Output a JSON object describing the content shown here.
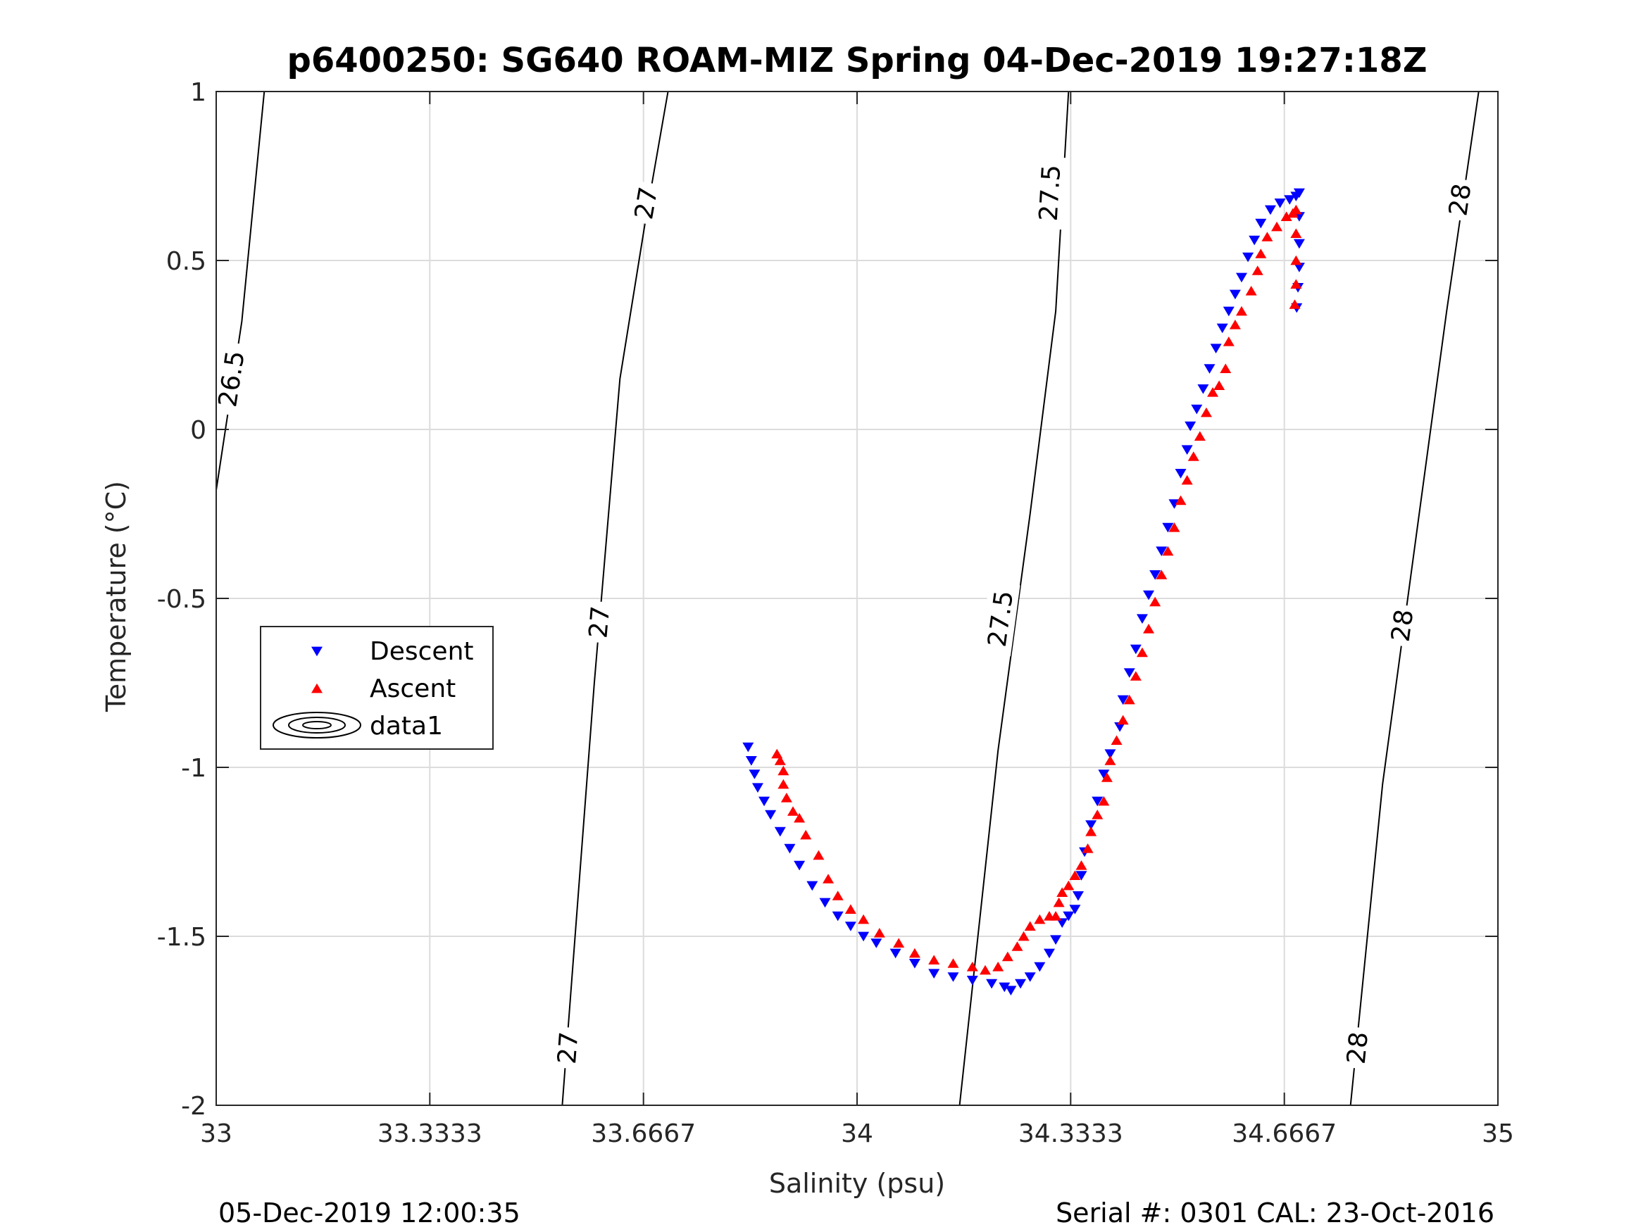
{
  "title": "p6400250: SG640 ROAM-MIZ Spring 04-Dec-2019 19:27:18Z",
  "footer": {
    "left": "05-Dec-2019 12:00:35",
    "right": "Serial #: 0301  CAL: 23-Oct-2016"
  },
  "colors": {
    "descent": "#0000ff",
    "ascent": "#ff0000",
    "grid": "#dcdcdc",
    "axis": "#262626",
    "contour": "#000000"
  },
  "chart_data": {
    "type": "scatter",
    "xlabel": "Salinity (psu)",
    "ylabel": "Temperature (°C)",
    "xlim": [
      33,
      35
    ],
    "ylim": [
      -2,
      1
    ],
    "grid": true,
    "xticks": [
      {
        "value": 33,
        "label": "33"
      },
      {
        "value": 33.3333,
        "label": "33.3333"
      },
      {
        "value": 33.6667,
        "label": "33.6667"
      },
      {
        "value": 34,
        "label": "34"
      },
      {
        "value": 34.3333,
        "label": "34.3333"
      },
      {
        "value": 34.6667,
        "label": "34.6667"
      },
      {
        "value": 35,
        "label": "35"
      }
    ],
    "yticks": [
      {
        "value": 1,
        "label": "1"
      },
      {
        "value": 0.5,
        "label": "0.5"
      },
      {
        "value": 0,
        "label": "0"
      },
      {
        "value": -0.5,
        "label": "-0.5"
      },
      {
        "value": -1,
        "label": "-1"
      },
      {
        "value": -1.5,
        "label": "-1.5"
      },
      {
        "value": -2,
        "label": "-2"
      }
    ],
    "legend": {
      "placement": "left",
      "entries": [
        {
          "label": "Descent",
          "marker": "triangle-down",
          "color": "#0000ff"
        },
        {
          "label": "Ascent",
          "marker": "triangle-up",
          "color": "#ff0000"
        },
        {
          "label": "data1",
          "marker": "contour-ellipses",
          "color": "#000000"
        }
      ]
    },
    "contours": [
      {
        "level": "26.5",
        "points": [
          [
            33.0,
            -0.18
          ],
          [
            33.04,
            0.32
          ],
          [
            33.075,
            1.0
          ]
        ],
        "labels": [
          {
            "s": 33.023,
            "t": 0.15,
            "text": "26.5"
          }
        ]
      },
      {
        "level": "27",
        "points": [
          [
            33.54,
            -2.0
          ],
          [
            33.59,
            -0.75
          ],
          [
            33.63,
            0.15
          ],
          [
            33.67,
            0.62
          ],
          [
            33.705,
            1.0
          ]
        ],
        "labels": [
          {
            "s": 33.67,
            "t": 0.67,
            "text": "27"
          },
          {
            "s": 33.597,
            "t": -0.57,
            "text": "27"
          },
          {
            "s": 33.548,
            "t": -1.83,
            "text": "27"
          }
        ]
      },
      {
        "level": "27.5",
        "points": [
          [
            34.16,
            -2.0
          ],
          [
            34.22,
            -0.95
          ],
          [
            34.27,
            -0.25
          ],
          [
            34.31,
            0.35
          ],
          [
            34.33,
            1.0
          ]
        ],
        "labels": [
          {
            "s": 34.3,
            "t": 0.7,
            "text": "27.5"
          },
          {
            "s": 34.223,
            "t": -0.56,
            "text": "27.5"
          }
        ]
      },
      {
        "level": "28",
        "points": [
          [
            34.77,
            -2.0
          ],
          [
            34.82,
            -1.05
          ],
          [
            34.87,
            -0.35
          ],
          [
            34.92,
            0.35
          ],
          [
            34.97,
            1.0
          ]
        ],
        "labels": [
          {
            "s": 34.94,
            "t": 0.68,
            "text": "28"
          },
          {
            "s": 34.85,
            "t": -0.58,
            "text": "28"
          },
          {
            "s": 34.78,
            "t": -1.83,
            "text": "28"
          }
        ]
      }
    ],
    "series": [
      {
        "name": "Descent",
        "marker": "triangle-down",
        "color": "#0000ff",
        "points": [
          [
            33.83,
            -0.94
          ],
          [
            33.835,
            -0.98
          ],
          [
            33.84,
            -1.02
          ],
          [
            33.845,
            -1.06
          ],
          [
            33.855,
            -1.1
          ],
          [
            33.865,
            -1.14
          ],
          [
            33.88,
            -1.19
          ],
          [
            33.895,
            -1.24
          ],
          [
            33.91,
            -1.29
          ],
          [
            33.93,
            -1.35
          ],
          [
            33.95,
            -1.4
          ],
          [
            33.97,
            -1.44
          ],
          [
            33.99,
            -1.47
          ],
          [
            34.01,
            -1.5
          ],
          [
            34.03,
            -1.52
          ],
          [
            34.06,
            -1.55
          ],
          [
            34.09,
            -1.58
          ],
          [
            34.12,
            -1.61
          ],
          [
            34.15,
            -1.62
          ],
          [
            34.18,
            -1.63
          ],
          [
            34.21,
            -1.64
          ],
          [
            34.23,
            -1.65
          ],
          [
            34.24,
            -1.66
          ],
          [
            34.255,
            -1.64
          ],
          [
            34.27,
            -1.62
          ],
          [
            34.285,
            -1.59
          ],
          [
            34.3,
            -1.55
          ],
          [
            34.31,
            -1.51
          ],
          [
            34.32,
            -1.46
          ],
          [
            34.33,
            -1.44
          ],
          [
            34.34,
            -1.42
          ],
          [
            34.345,
            -1.38
          ],
          [
            34.35,
            -1.32
          ],
          [
            34.355,
            -1.25
          ],
          [
            34.365,
            -1.17
          ],
          [
            34.375,
            -1.1
          ],
          [
            34.385,
            -1.02
          ],
          [
            34.395,
            -0.96
          ],
          [
            34.41,
            -0.88
          ],
          [
            34.415,
            -0.8
          ],
          [
            34.425,
            -0.72
          ],
          [
            34.435,
            -0.65
          ],
          [
            34.445,
            -0.56
          ],
          [
            34.455,
            -0.49
          ],
          [
            34.465,
            -0.43
          ],
          [
            34.475,
            -0.36
          ],
          [
            34.485,
            -0.29
          ],
          [
            34.495,
            -0.22
          ],
          [
            34.505,
            -0.13
          ],
          [
            34.515,
            -0.06
          ],
          [
            34.52,
            0.01
          ],
          [
            34.53,
            0.06
          ],
          [
            34.54,
            0.12
          ],
          [
            34.55,
            0.18
          ],
          [
            34.56,
            0.24
          ],
          [
            34.57,
            0.3
          ],
          [
            34.58,
            0.35
          ],
          [
            34.59,
            0.4
          ],
          [
            34.6,
            0.45
          ],
          [
            34.61,
            0.51
          ],
          [
            34.62,
            0.56
          ],
          [
            34.63,
            0.61
          ],
          [
            34.645,
            0.65
          ],
          [
            34.66,
            0.67
          ],
          [
            34.675,
            0.68
          ],
          [
            34.685,
            0.69
          ],
          [
            34.69,
            0.7
          ],
          [
            34.69,
            0.63
          ],
          [
            34.69,
            0.55
          ],
          [
            34.69,
            0.48
          ],
          [
            34.688,
            0.42
          ],
          [
            34.686,
            0.36
          ]
        ]
      },
      {
        "name": "Ascent",
        "marker": "triangle-up",
        "color": "#ff0000",
        "points": [
          [
            33.875,
            -0.96
          ],
          [
            33.88,
            -0.98
          ],
          [
            33.885,
            -1.01
          ],
          [
            33.885,
            -1.05
          ],
          [
            33.89,
            -1.09
          ],
          [
            33.9,
            -1.13
          ],
          [
            33.91,
            -1.15
          ],
          [
            33.92,
            -1.2
          ],
          [
            33.94,
            -1.26
          ],
          [
            33.955,
            -1.33
          ],
          [
            33.97,
            -1.38
          ],
          [
            33.99,
            -1.42
          ],
          [
            34.01,
            -1.45
          ],
          [
            34.035,
            -1.49
          ],
          [
            34.065,
            -1.52
          ],
          [
            34.09,
            -1.55
          ],
          [
            34.12,
            -1.57
          ],
          [
            34.15,
            -1.58
          ],
          [
            34.18,
            -1.59
          ],
          [
            34.2,
            -1.6
          ],
          [
            34.22,
            -1.59
          ],
          [
            34.235,
            -1.56
          ],
          [
            34.25,
            -1.53
          ],
          [
            34.26,
            -1.5
          ],
          [
            34.27,
            -1.47
          ],
          [
            34.285,
            -1.45
          ],
          [
            34.3,
            -1.44
          ],
          [
            34.31,
            -1.44
          ],
          [
            34.315,
            -1.4
          ],
          [
            34.32,
            -1.37
          ],
          [
            34.33,
            -1.35
          ],
          [
            34.34,
            -1.32
          ],
          [
            34.35,
            -1.29
          ],
          [
            34.36,
            -1.24
          ],
          [
            34.365,
            -1.19
          ],
          [
            34.375,
            -1.14
          ],
          [
            34.385,
            -1.1
          ],
          [
            34.39,
            -1.03
          ],
          [
            34.395,
            -0.98
          ],
          [
            34.405,
            -0.92
          ],
          [
            34.415,
            -0.86
          ],
          [
            34.425,
            -0.8
          ],
          [
            34.435,
            -0.73
          ],
          [
            34.445,
            -0.66
          ],
          [
            34.455,
            -0.59
          ],
          [
            34.465,
            -0.51
          ],
          [
            34.475,
            -0.43
          ],
          [
            34.485,
            -0.36
          ],
          [
            34.495,
            -0.29
          ],
          [
            34.505,
            -0.21
          ],
          [
            34.515,
            -0.15
          ],
          [
            34.525,
            -0.08
          ],
          [
            34.535,
            -0.02
          ],
          [
            34.545,
            0.05
          ],
          [
            34.555,
            0.11
          ],
          [
            34.565,
            0.13
          ],
          [
            34.575,
            0.18
          ],
          [
            34.58,
            0.26
          ],
          [
            34.59,
            0.31
          ],
          [
            34.6,
            0.35
          ],
          [
            34.615,
            0.41
          ],
          [
            34.625,
            0.47
          ],
          [
            34.63,
            0.52
          ],
          [
            34.64,
            0.57
          ],
          [
            34.655,
            0.6
          ],
          [
            34.67,
            0.63
          ],
          [
            34.68,
            0.64
          ],
          [
            34.685,
            0.65
          ],
          [
            34.685,
            0.58
          ],
          [
            34.685,
            0.5
          ],
          [
            34.685,
            0.43
          ],
          [
            34.683,
            0.37
          ]
        ]
      }
    ]
  }
}
